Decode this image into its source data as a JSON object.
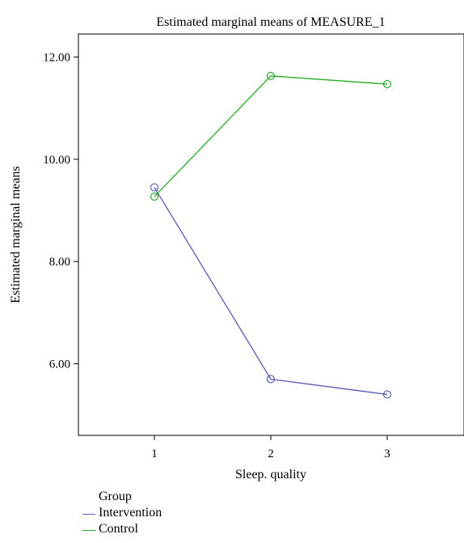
{
  "chart_data": {
    "type": "line",
    "title": "Estimated marginal means of MEASURE_1",
    "xlabel": "Sleep. quality",
    "ylabel": "Estimated marginal means",
    "categories": [
      "1",
      "2",
      "3"
    ],
    "ylim": [
      4.6,
      12.45
    ],
    "yticks": [
      "12.00",
      "10.00",
      "8.00",
      "6.00"
    ],
    "ytick_values": [
      12,
      10,
      8,
      6
    ],
    "grid": false,
    "legend_title": "Group",
    "legend_position": "bottom-left",
    "series": [
      {
        "name": "Intervention",
        "color": "#5b5bb5",
        "values": [
          9.45,
          5.7,
          5.4
        ]
      },
      {
        "name": "Control",
        "color": "#22aa22",
        "values": [
          9.27,
          11.63,
          11.47
        ]
      }
    ]
  }
}
